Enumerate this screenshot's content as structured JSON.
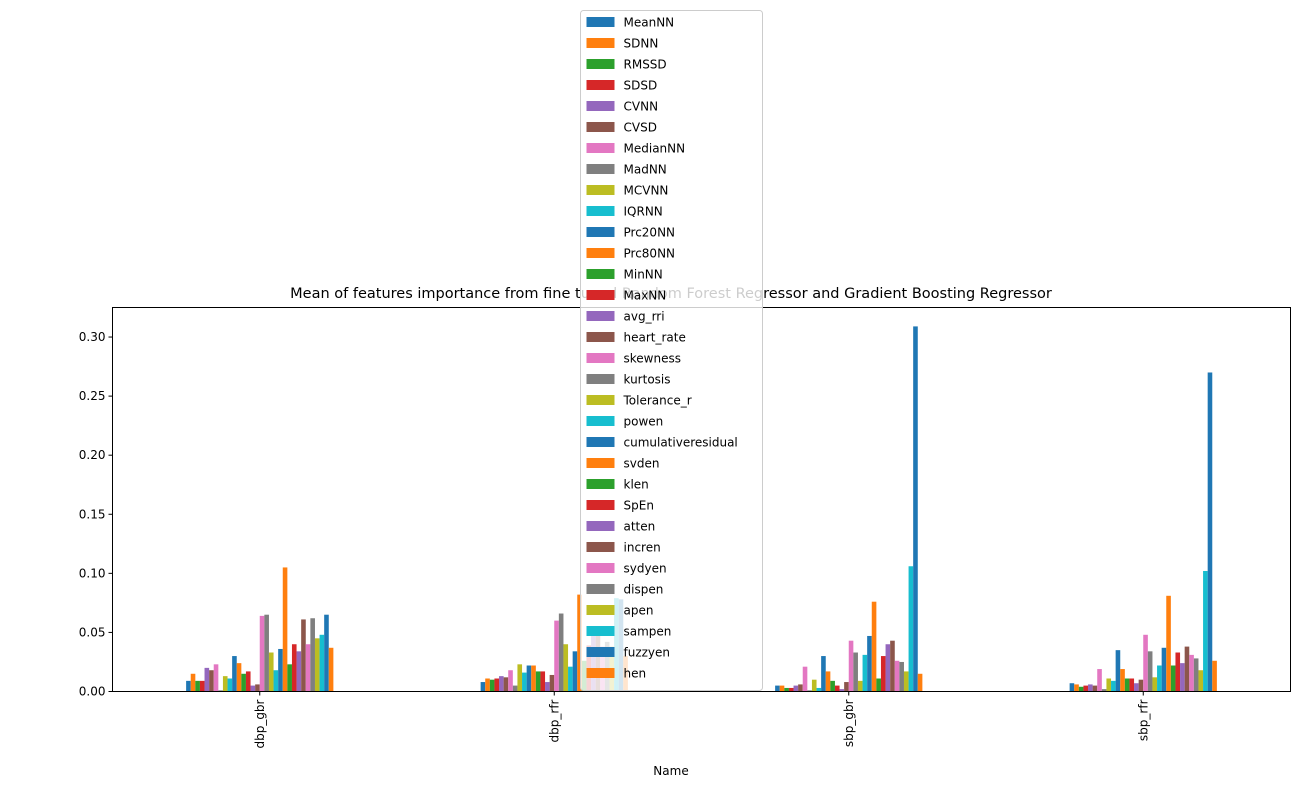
{
  "chart_data": {
    "type": "bar",
    "title": "Mean of features importance from fine tuned Random Forest Regressor and Gradient Boosting Regressor",
    "xlabel": "Name",
    "ylabel": "",
    "categories": [
      "dbp_gbr",
      "dbp_rfr",
      "sbp_gbr",
      "sbp_rfr"
    ],
    "ylim": [
      0,
      0.325
    ],
    "yticks": [
      "0.00",
      "0.05",
      "0.10",
      "0.15",
      "0.20",
      "0.25",
      "0.30"
    ],
    "legend_position": "upper-center",
    "grid": false,
    "series": [
      {
        "name": "MeanNN",
        "color": "#1f77b4",
        "values": [
          0.009,
          0.008,
          0.005,
          0.007
        ]
      },
      {
        "name": "SDNN",
        "color": "#ff7f0e",
        "values": [
          0.015,
          0.011,
          0.005,
          0.006
        ]
      },
      {
        "name": "RMSSD",
        "color": "#2ca02c",
        "values": [
          0.009,
          0.01,
          0.003,
          0.004
        ]
      },
      {
        "name": "SDSD",
        "color": "#d62728",
        "values": [
          0.009,
          0.011,
          0.003,
          0.005
        ]
      },
      {
        "name": "CVNN",
        "color": "#9467bd",
        "values": [
          0.02,
          0.013,
          0.005,
          0.006
        ]
      },
      {
        "name": "CVSD",
        "color": "#8c564b",
        "values": [
          0.018,
          0.012,
          0.006,
          0.005
        ]
      },
      {
        "name": "MedianNN",
        "color": "#e377c2",
        "values": [
          0.023,
          0.018,
          0.021,
          0.019
        ]
      },
      {
        "name": "MadNN",
        "color": "#7f7f7f",
        "values": [
          0.001,
          0.005,
          0.001,
          0.002
        ]
      },
      {
        "name": "MCVNN",
        "color": "#bcbd22",
        "values": [
          0.013,
          0.023,
          0.01,
          0.011
        ]
      },
      {
        "name": "IQRNN",
        "color": "#17becf",
        "values": [
          0.011,
          0.016,
          0.003,
          0.009
        ]
      },
      {
        "name": "Prc20NN",
        "color": "#1f77b4",
        "values": [
          0.03,
          0.022,
          0.03,
          0.035
        ]
      },
      {
        "name": "Prc80NN",
        "color": "#ff7f0e",
        "values": [
          0.024,
          0.022,
          0.017,
          0.019
        ]
      },
      {
        "name": "MinNN",
        "color": "#2ca02c",
        "values": [
          0.015,
          0.017,
          0.009,
          0.011
        ]
      },
      {
        "name": "MaxNN",
        "color": "#d62728",
        "values": [
          0.017,
          0.017,
          0.005,
          0.011
        ]
      },
      {
        "name": "avg_rri",
        "color": "#9467bd",
        "values": [
          0.005,
          0.008,
          0.002,
          0.007
        ]
      },
      {
        "name": "heart_rate",
        "color": "#8c564b",
        "values": [
          0.006,
          0.014,
          0.008,
          0.01
        ]
      },
      {
        "name": "skewness",
        "color": "#e377c2",
        "values": [
          0.064,
          0.06,
          0.043,
          0.048
        ]
      },
      {
        "name": "kurtosis",
        "color": "#7f7f7f",
        "values": [
          0.065,
          0.066,
          0.033,
          0.034
        ]
      },
      {
        "name": "Tolerance_r",
        "color": "#bcbd22",
        "values": [
          0.033,
          0.04,
          0.009,
          0.012
        ]
      },
      {
        "name": "powen",
        "color": "#17becf",
        "values": [
          0.018,
          0.021,
          0.031,
          0.022
        ]
      },
      {
        "name": "cumulativeresidual",
        "color": "#1f77b4",
        "values": [
          0.036,
          0.034,
          0.047,
          0.037
        ]
      },
      {
        "name": "svden",
        "color": "#ff7f0e",
        "values": [
          0.105,
          0.082,
          0.076,
          0.081
        ]
      },
      {
        "name": "klen",
        "color": "#2ca02c",
        "values": [
          0.023,
          0.026,
          0.011,
          0.022
        ]
      },
      {
        "name": "SpEn",
        "color": "#d62728",
        "values": [
          0.04,
          0.039,
          0.03,
          0.033
        ]
      },
      {
        "name": "atten",
        "color": "#9467bd",
        "values": [
          0.034,
          0.047,
          0.04,
          0.024
        ]
      },
      {
        "name": "incren",
        "color": "#8c564b",
        "values": [
          0.061,
          0.055,
          0.043,
          0.038
        ]
      },
      {
        "name": "sydyen",
        "color": "#e377c2",
        "values": [
          0.04,
          0.038,
          0.026,
          0.031
        ]
      },
      {
        "name": "dispen",
        "color": "#7f7f7f",
        "values": [
          0.062,
          0.042,
          0.025,
          0.028
        ]
      },
      {
        "name": "apen",
        "color": "#bcbd22",
        "values": [
          0.045,
          0.038,
          0.017,
          0.018
        ]
      },
      {
        "name": "sampen",
        "color": "#17becf",
        "values": [
          0.048,
          0.079,
          0.106,
          0.102
        ]
      },
      {
        "name": "fuzzyen",
        "color": "#1f77b4",
        "values": [
          0.065,
          0.078,
          0.309,
          0.27
        ]
      },
      {
        "name": "hen",
        "color": "#ff7f0e",
        "values": [
          0.037,
          0.03,
          0.015,
          0.026
        ]
      }
    ]
  }
}
